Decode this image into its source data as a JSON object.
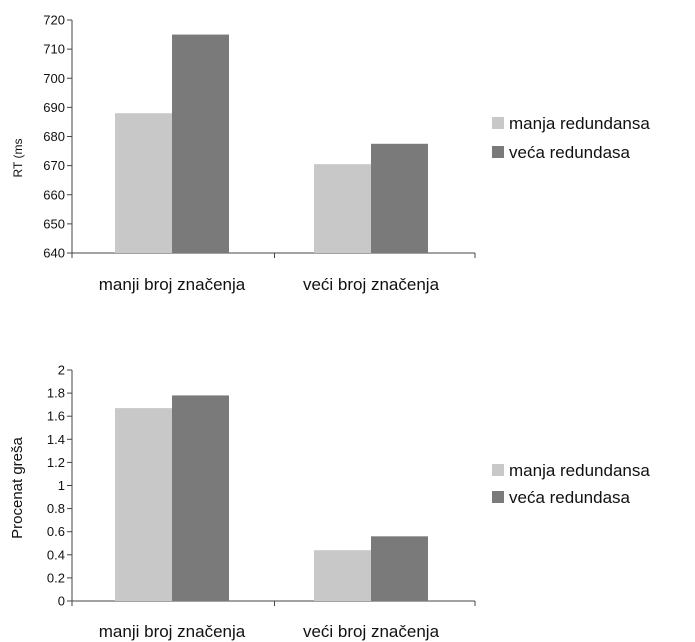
{
  "chart_data": [
    {
      "type": "bar",
      "ylabel": "RT (ms",
      "xlabel": "",
      "categories": [
        "manji broj značenja",
        "veći broj značenja"
      ],
      "ylim": [
        640,
        720
      ],
      "yticks": [
        "640",
        "650",
        "660",
        "670",
        "680",
        "690",
        "700",
        "710",
        "720"
      ],
      "series": [
        {
          "name": "manja redundansa",
          "values": [
            688,
            670.5
          ],
          "color": "#c8c8c8"
        },
        {
          "name": "veća redundasa",
          "values": [
            715,
            677.5
          ],
          "color": "#7a7a7a"
        }
      ],
      "grid": false,
      "legend": "right"
    },
    {
      "type": "bar",
      "ylabel": "Procenat greša",
      "xlabel": "",
      "categories": [
        "manji broj značenja",
        "veći broj značenja"
      ],
      "ylim": [
        0,
        2
      ],
      "yticks": [
        "0",
        "0.2",
        "0.4",
        "0.6",
        "0.8",
        "1",
        "1.2",
        "1.4",
        "1.6",
        "1.8",
        "2"
      ],
      "series": [
        {
          "name": "manja redundansa",
          "values": [
            1.67,
            0.44
          ],
          "color": "#c8c8c8"
        },
        {
          "name": "veća redundasa",
          "values": [
            1.78,
            0.56
          ],
          "color": "#7a7a7a"
        }
      ],
      "grid": false,
      "legend": "right"
    }
  ]
}
